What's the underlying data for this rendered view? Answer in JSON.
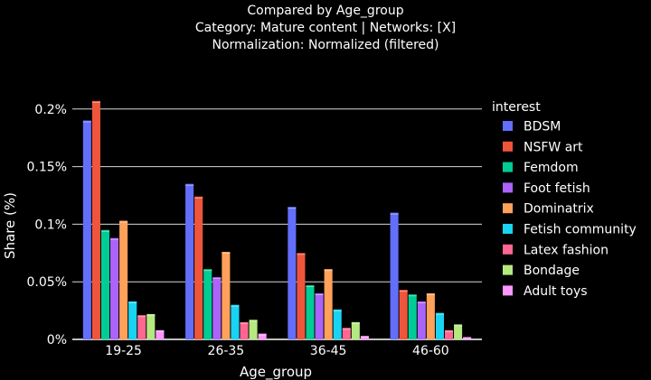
{
  "chart_data": {
    "type": "bar",
    "title_lines": [
      "Compared by Age_group",
      "Category: Mature content | Networks: [X]",
      "Normalization: Normalized (filtered)"
    ],
    "xlabel": "Age_group",
    "ylabel": "Share (%)",
    "legend_title": "interest",
    "legend_position": "right",
    "ylim": [
      0,
      0.21
    ],
    "yticks": [
      0,
      0.05,
      0.1,
      0.15,
      0.2
    ],
    "ytick_labels": [
      "0%",
      "0.05%",
      "0.1%",
      "0.15%",
      "0.2%"
    ],
    "grid": true,
    "categories": [
      "19-25",
      "26-35",
      "36-45",
      "46-60"
    ],
    "series": [
      {
        "name": "BDSM",
        "color": "#636EFA",
        "values": [
          0.19,
          0.135,
          0.115,
          0.11
        ]
      },
      {
        "name": "NSFW art",
        "color": "#EF553B",
        "values": [
          0.207,
          0.124,
          0.075,
          0.043
        ]
      },
      {
        "name": "Femdom",
        "color": "#00CC96",
        "values": [
          0.095,
          0.061,
          0.047,
          0.039
        ]
      },
      {
        "name": "Foot fetish",
        "color": "#AB63FA",
        "values": [
          0.088,
          0.054,
          0.04,
          0.033
        ]
      },
      {
        "name": "Dominatrix",
        "color": "#FFA15A",
        "values": [
          0.103,
          0.076,
          0.061,
          0.04
        ]
      },
      {
        "name": "Fetish community",
        "color": "#19D3F3",
        "values": [
          0.033,
          0.03,
          0.026,
          0.023
        ]
      },
      {
        "name": "Latex fashion",
        "color": "#FF6692",
        "values": [
          0.021,
          0.015,
          0.01,
          0.008
        ]
      },
      {
        "name": "Bondage",
        "color": "#B6E880",
        "values": [
          0.022,
          0.017,
          0.015,
          0.013
        ]
      },
      {
        "name": "Adult toys",
        "color": "#FF97FF",
        "values": [
          0.008,
          0.005,
          0.003,
          0.002
        ]
      }
    ]
  }
}
